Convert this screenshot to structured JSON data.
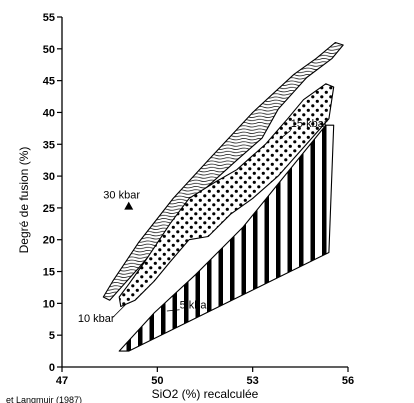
{
  "chart_data": {
    "type": "area",
    "title": "",
    "xlabel": "SiO2 (%) recalculée",
    "ylabel": "Degré de fusion (%)",
    "xlim": [
      47,
      56
    ],
    "ylim": [
      0,
      55
    ],
    "x_ticks": [
      47,
      50,
      53,
      56
    ],
    "y_ticks": [
      0,
      5,
      10,
      15,
      20,
      25,
      30,
      35,
      40,
      45,
      50,
      55
    ],
    "grid": false,
    "series": [
      {
        "name": "15 kbar",
        "fill": "wavy-lines",
        "polygon": [
          [
            48.3,
            11
          ],
          [
            48.5,
            10.5
          ],
          [
            49.4,
            15.5
          ],
          [
            50.0,
            19.0
          ],
          [
            50.8,
            24
          ],
          [
            51.5,
            28
          ],
          [
            52.5,
            32.5
          ],
          [
            53.3,
            36.0
          ],
          [
            53.8,
            40.5
          ],
          [
            54.7,
            45.5
          ],
          [
            55.5,
            48.5
          ],
          [
            55.85,
            50.6
          ],
          [
            55.6,
            51.0
          ],
          [
            55.0,
            48.5
          ],
          [
            54.3,
            46
          ],
          [
            53.0,
            40.0
          ],
          [
            51.6,
            32.5
          ],
          [
            50.5,
            26.5
          ],
          [
            49.4,
            19.5
          ],
          [
            48.6,
            13.5
          ]
        ]
      },
      {
        "name": "10 kbar",
        "fill": "dots",
        "polygon": [
          [
            48.85,
            9.5
          ],
          [
            49.3,
            10.5
          ],
          [
            49.9,
            13.5
          ],
          [
            50.4,
            16.5
          ],
          [
            51.0,
            20.0
          ],
          [
            51.6,
            20.5
          ],
          [
            52.3,
            24.0
          ],
          [
            53.0,
            26.5
          ],
          [
            53.8,
            30.0
          ],
          [
            54.6,
            34.5
          ],
          [
            55.4,
            39.0
          ],
          [
            55.55,
            44.0
          ],
          [
            55.3,
            44.5
          ],
          [
            54.6,
            42.0
          ],
          [
            54.1,
            39.0
          ],
          [
            53.4,
            35.0
          ],
          [
            52.5,
            31.0
          ],
          [
            51.8,
            29.0
          ],
          [
            51.0,
            26.5
          ],
          [
            50.4,
            22.5
          ],
          [
            50.0,
            19.5
          ],
          [
            49.6,
            16.5
          ],
          [
            49.1,
            13.0
          ],
          [
            48.8,
            11.0
          ]
        ]
      },
      {
        "name": "5 kbar",
        "fill": "vertical-stripes",
        "polygon": [
          [
            48.8,
            2.5
          ],
          [
            49.1,
            2.5
          ],
          [
            55.4,
            18.0
          ],
          [
            55.55,
            38.0
          ],
          [
            55.3,
            38.0
          ],
          [
            52.7,
            22.0
          ],
          [
            51.2,
            14.5
          ],
          [
            49.9,
            8.5
          ]
        ]
      }
    ],
    "annotations": [
      {
        "text": "15 kbar",
        "x": 54.2,
        "y": 37.7
      },
      {
        "text": "10 kbar",
        "x": 47.5,
        "y": 7.1
      },
      {
        "text": "5 kbar",
        "x": 50.7,
        "y": 9.2
      },
      {
        "text": "30 kbar",
        "x": 48.3,
        "y": 26.5
      }
    ],
    "points": [
      {
        "name": "30 kbar",
        "x": 49.1,
        "y": 25.2,
        "marker": "triangle"
      }
    ],
    "source_note": "et Langmuir (1987)"
  }
}
